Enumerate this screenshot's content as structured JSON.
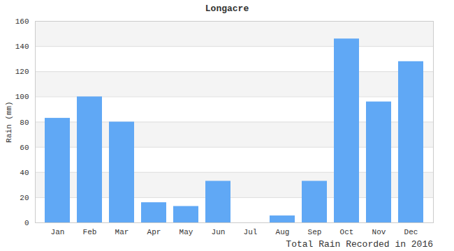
{
  "chart_data": {
    "type": "bar",
    "title": "Longacre",
    "x_label": null,
    "y_label": "Rain (mm)",
    "caption": "Total Rain Recorded in 2016",
    "categories": [
      "Jan",
      "Feb",
      "Mar",
      "Apr",
      "May",
      "Jun",
      "Jul",
      "Aug",
      "Sep",
      "Oct",
      "Nov",
      "Dec"
    ],
    "values": [
      83,
      100,
      80,
      16,
      13,
      33,
      0,
      5.5,
      33,
      146,
      96,
      128
    ],
    "color": "#60a8f5",
    "ylim": [
      0,
      160
    ],
    "yticks": [
      0,
      20,
      40,
      60,
      80,
      100,
      120,
      140,
      160
    ],
    "grid": true
  }
}
